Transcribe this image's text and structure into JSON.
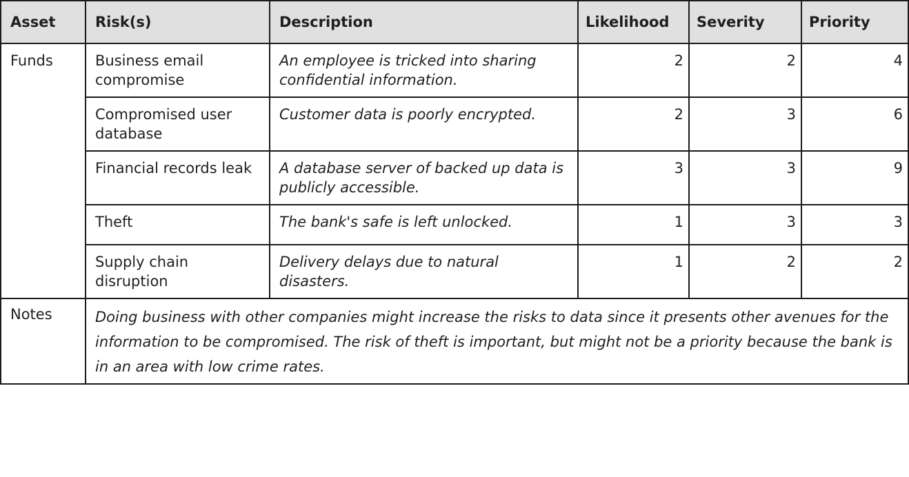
{
  "table": {
    "headers": [
      "Asset",
      "Risk(s)",
      "Description",
      "Likelihood",
      "Severity",
      "Priority"
    ],
    "asset": "Funds",
    "rows": [
      {
        "risk": "Business email compromise",
        "description": "An employee is tricked into sharing confidential information.",
        "likelihood": "2",
        "severity": "2",
        "priority": "4"
      },
      {
        "risk": "Compromised user database",
        "description": "Customer data is poorly encrypted.",
        "likelihood": "2",
        "severity": "3",
        "priority": "6"
      },
      {
        "risk": "Financial records leak",
        "description": "A database server of backed up data is publicly accessible.",
        "likelihood": "3",
        "severity": "3",
        "priority": "9"
      },
      {
        "risk": "Theft",
        "description": "The bank's safe is left unlocked.",
        "likelihood": "1",
        "severity": "3",
        "priority": "3"
      },
      {
        "risk": "Supply chain disruption",
        "description": "Delivery delays due to natural disasters.",
        "likelihood": "1",
        "severity": "2",
        "priority": "2"
      }
    ],
    "notes_label": "Notes",
    "notes_text": "Doing business with other companies might increase the risks to data since it presents other avenues for the information to be compromised. The risk of theft is important, but might not be a priority because the bank is in an area with low crime rates."
  }
}
